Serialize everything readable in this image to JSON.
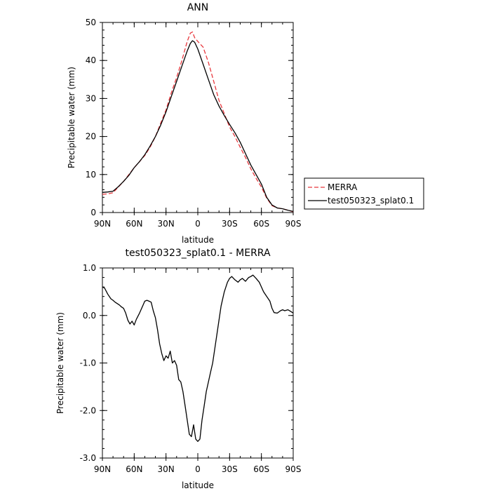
{
  "chart_data": [
    {
      "type": "line",
      "title": "ANN",
      "xlabel": "latitude",
      "ylabel": "Precipitable water (mm)",
      "xlim": [
        90,
        -90
      ],
      "ylim": [
        0,
        50
      ],
      "x_tick_values": [
        90,
        60,
        30,
        0,
        -30,
        -60,
        -90
      ],
      "x_tick_labels": [
        "90N",
        "60N",
        "30N",
        "0",
        "30S",
        "60S",
        "90S"
      ],
      "y_tick_values": [
        0,
        10,
        20,
        30,
        40,
        50
      ],
      "y_tick_labels": [
        "0",
        "10",
        "20",
        "30",
        "40",
        "50"
      ],
      "legend_position": "right, outside plot",
      "series": [
        {
          "name": "MERRA",
          "color": "#e8383d",
          "style": "dashed",
          "x": [
            90,
            85,
            80,
            75,
            70,
            65,
            60,
            55,
            50,
            45,
            40,
            35,
            30,
            25,
            20,
            15,
            10,
            7,
            5,
            3,
            0,
            -5,
            -10,
            -15,
            -20,
            -25,
            -30,
            -35,
            -40,
            -45,
            -50,
            -55,
            -60,
            -65,
            -70,
            -75,
            -80,
            -85,
            -90
          ],
          "y": [
            4.8,
            4.9,
            5.2,
            6.7,
            8.2,
            10.0,
            11.8,
            13.4,
            15.0,
            17.2,
            20.0,
            23.5,
            27.0,
            31.5,
            35.5,
            40.0,
            45.0,
            47.2,
            47.5,
            46.0,
            45.0,
            43.5,
            39.5,
            34.5,
            29.5,
            26.0,
            22.5,
            20.0,
            17.2,
            14.5,
            11.5,
            9.0,
            6.7,
            3.8,
            1.8,
            1.2,
            1.0,
            0.6,
            0.2
          ]
        },
        {
          "name": "test050323_splat0.1",
          "color": "#000000",
          "style": "solid",
          "x": [
            90,
            85,
            80,
            75,
            70,
            65,
            60,
            55,
            50,
            45,
            40,
            35,
            30,
            25,
            20,
            15,
            10,
            7,
            5,
            3,
            0,
            -5,
            -10,
            -15,
            -20,
            -25,
            -30,
            -35,
            -40,
            -45,
            -50,
            -55,
            -60,
            -65,
            -70,
            -75,
            -80,
            -85,
            -90
          ],
          "y": [
            5.3,
            5.4,
            5.6,
            6.8,
            8.2,
            9.8,
            11.8,
            13.4,
            15.2,
            17.5,
            20.0,
            23.0,
            26.5,
            30.5,
            34.5,
            38.5,
            42.5,
            44.5,
            45.2,
            44.8,
            43.0,
            39.0,
            35.0,
            31.0,
            28.0,
            25.5,
            23.2,
            21.0,
            18.5,
            15.5,
            12.5,
            10.0,
            7.5,
            4.0,
            2.0,
            1.2,
            1.0,
            0.6,
            0.3
          ]
        }
      ]
    },
    {
      "type": "line",
      "title": "test050323_splat0.1 - MERRA",
      "xlabel": "latitude",
      "ylabel": "Precipitable water (mm)",
      "xlim": [
        90,
        -90
      ],
      "ylim": [
        -3.0,
        1.0
      ],
      "x_tick_values": [
        90,
        60,
        30,
        0,
        -30,
        -60,
        -90
      ],
      "x_tick_labels": [
        "90N",
        "60N",
        "30N",
        "0",
        "30S",
        "60S",
        "90S"
      ],
      "y_tick_values": [
        -3.0,
        -2.0,
        -1.0,
        0.0,
        1.0
      ],
      "y_tick_labels": [
        "-3.0",
        "-2.0",
        "-1.0",
        "0.0",
        "1.0"
      ],
      "series": [
        {
          "color": "#000000",
          "style": "solid",
          "x": [
            90,
            88,
            85,
            82,
            80,
            78,
            76,
            74,
            72,
            70,
            68,
            66,
            64,
            62,
            60,
            58,
            55,
            52,
            50,
            48,
            46,
            44,
            42,
            40,
            38,
            36,
            34,
            32,
            30,
            28,
            26,
            24,
            22,
            20,
            18,
            16,
            14,
            12,
            10,
            8,
            6,
            4,
            2,
            0,
            -2,
            -4,
            -6,
            -8,
            -10,
            -12,
            -14,
            -16,
            -18,
            -20,
            -22,
            -25,
            -28,
            -30,
            -32,
            -35,
            -38,
            -40,
            -42,
            -45,
            -48,
            -50,
            -52,
            -55,
            -58,
            -60,
            -62,
            -65,
            -68,
            -70,
            -72,
            -75,
            -78,
            -80,
            -82,
            -85,
            -88,
            -90
          ],
          "y": [
            0.6,
            0.58,
            0.45,
            0.35,
            0.32,
            0.28,
            0.25,
            0.22,
            0.18,
            0.15,
            0.05,
            -0.1,
            -0.18,
            -0.12,
            -0.2,
            -0.08,
            0.05,
            0.2,
            0.3,
            0.32,
            0.3,
            0.28,
            0.1,
            -0.05,
            -0.3,
            -0.6,
            -0.8,
            -0.95,
            -0.85,
            -0.9,
            -0.75,
            -1.0,
            -0.95,
            -1.05,
            -1.35,
            -1.4,
            -1.6,
            -1.9,
            -2.2,
            -2.5,
            -2.55,
            -2.3,
            -2.6,
            -2.65,
            -2.6,
            -2.2,
            -1.9,
            -1.6,
            -1.4,
            -1.2,
            -1.0,
            -0.7,
            -0.4,
            -0.1,
            0.2,
            0.5,
            0.7,
            0.78,
            0.82,
            0.75,
            0.7,
            0.75,
            0.78,
            0.72,
            0.8,
            0.82,
            0.85,
            0.78,
            0.7,
            0.6,
            0.5,
            0.4,
            0.3,
            0.15,
            0.06,
            0.05,
            0.1,
            0.12,
            0.1,
            0.12,
            0.08,
            0.05
          ]
        }
      ]
    }
  ]
}
